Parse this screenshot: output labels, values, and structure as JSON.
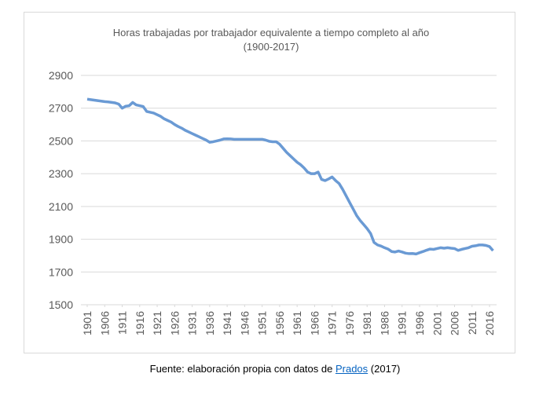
{
  "chart_data": {
    "type": "line",
    "title": "Horas trabajadas por trabajador equivalente a tiempo completo al año",
    "subtitle": "(1900-2017)",
    "x": [
      1901,
      1902,
      1903,
      1904,
      1905,
      1906,
      1907,
      1908,
      1909,
      1910,
      1911,
      1912,
      1913,
      1914,
      1915,
      1916,
      1917,
      1918,
      1919,
      1920,
      1921,
      1922,
      1923,
      1924,
      1925,
      1926,
      1927,
      1928,
      1929,
      1930,
      1931,
      1932,
      1933,
      1934,
      1935,
      1936,
      1937,
      1938,
      1939,
      1940,
      1941,
      1942,
      1943,
      1944,
      1945,
      1946,
      1947,
      1948,
      1949,
      1950,
      1951,
      1952,
      1953,
      1954,
      1955,
      1956,
      1957,
      1958,
      1959,
      1960,
      1961,
      1962,
      1963,
      1964,
      1965,
      1966,
      1967,
      1968,
      1969,
      1970,
      1971,
      1972,
      1973,
      1974,
      1975,
      1976,
      1977,
      1978,
      1979,
      1980,
      1981,
      1982,
      1983,
      1984,
      1985,
      1986,
      1987,
      1988,
      1989,
      1990,
      1991,
      1992,
      1993,
      1994,
      1995,
      1996,
      1997,
      1998,
      1999,
      2000,
      2001,
      2002,
      2003,
      2004,
      2005,
      2006,
      2007,
      2008,
      2009,
      2010,
      2011,
      2012,
      2013,
      2014,
      2015,
      2016,
      2017
    ],
    "series": [
      {
        "name": "Horas",
        "color": "#6a9ad4",
        "values": [
          2755,
          2752,
          2749,
          2746,
          2743,
          2740,
          2738,
          2735,
          2732,
          2725,
          2700,
          2712,
          2715,
          2735,
          2720,
          2715,
          2710,
          2680,
          2675,
          2670,
          2660,
          2650,
          2635,
          2625,
          2615,
          2600,
          2588,
          2578,
          2565,
          2555,
          2545,
          2535,
          2525,
          2515,
          2505,
          2492,
          2495,
          2500,
          2505,
          2512,
          2513,
          2512,
          2510,
          2510,
          2510,
          2510,
          2510,
          2510,
          2510,
          2510,
          2510,
          2505,
          2498,
          2495,
          2495,
          2480,
          2455,
          2430,
          2410,
          2390,
          2370,
          2355,
          2335,
          2310,
          2300,
          2300,
          2310,
          2265,
          2258,
          2268,
          2280,
          2258,
          2240,
          2205,
          2165,
          2125,
          2085,
          2045,
          2015,
          1990,
          1965,
          1935,
          1880,
          1865,
          1858,
          1848,
          1840,
          1825,
          1822,
          1828,
          1822,
          1815,
          1812,
          1813,
          1810,
          1818,
          1825,
          1833,
          1840,
          1838,
          1843,
          1848,
          1845,
          1848,
          1845,
          1843,
          1832,
          1838,
          1843,
          1848,
          1857,
          1860,
          1865,
          1865,
          1862,
          1855,
          1830
        ]
      }
    ],
    "xlim": [
      1901,
      2017
    ],
    "xticks": [
      1901,
      1906,
      1911,
      1916,
      1921,
      1926,
      1931,
      1936,
      1941,
      1946,
      1951,
      1956,
      1961,
      1966,
      1971,
      1976,
      1981,
      1986,
      1991,
      1996,
      2001,
      2006,
      2011,
      2016
    ],
    "ylim": [
      1500,
      2900
    ],
    "yticks": [
      1500,
      1700,
      1900,
      2100,
      2300,
      2500,
      2700,
      2900
    ],
    "grid": true
  },
  "source": {
    "prefix": "Fuente: elaboración propia con datos de",
    "link": "Prados",
    "suffix": "(2017)"
  }
}
